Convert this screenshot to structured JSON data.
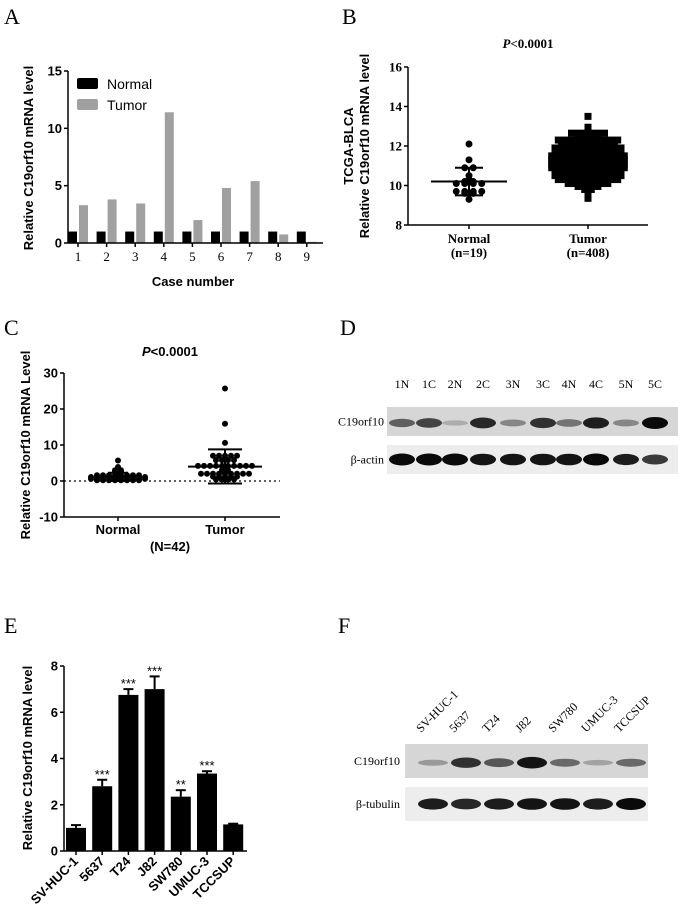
{
  "panels": {
    "a": "A",
    "b": "B",
    "c": "C",
    "d": "D",
    "e": "E",
    "f": "F"
  },
  "chart_data": [
    {
      "id": "A",
      "type": "bar",
      "xlabel": "Case number",
      "ylabel": "Relative C19orf10 mRNA level",
      "ylim": [
        0,
        15
      ],
      "yticks": [
        0,
        5,
        10,
        15
      ],
      "categories": [
        "1",
        "2",
        "3",
        "4",
        "5",
        "6",
        "7",
        "8",
        "9"
      ],
      "legend_position": "top-left",
      "series": [
        {
          "name": "Normal",
          "color": "#000000",
          "values": [
            1,
            1,
            1,
            1,
            1,
            1,
            1,
            1,
            1
          ]
        },
        {
          "name": "Tumor",
          "color": "#a0a0a0",
          "values": [
            3.3,
            3.8,
            3.45,
            11.4,
            2.0,
            4.8,
            5.4,
            0.75,
            0.1
          ]
        }
      ]
    },
    {
      "id": "B",
      "type": "scatter",
      "title": "P<0.0001",
      "title_italic_part": "P",
      "title_rest": "<0.0001",
      "ylabel_lines": [
        "TCGA-BLCA",
        "Relative C19orf10 mRNA level"
      ],
      "ylim": [
        8,
        16
      ],
      "yticks": [
        8,
        10,
        12,
        14,
        16
      ],
      "groups": [
        {
          "name": "Normal",
          "n_label": "(n=19)",
          "marker": "circle",
          "mean": 10.2,
          "sd_low": 9.5,
          "sd_high": 10.9,
          "values": [
            12.1,
            11.25,
            10.9,
            10.9,
            10.5,
            10.15,
            10.1,
            10.1,
            10.05,
            10.1,
            10.2,
            10.25,
            9.7,
            9.7,
            9.7,
            9.65,
            9.6,
            9.6,
            9.3
          ]
        },
        {
          "name": "Tumor",
          "n_label": "(n=408)",
          "marker": "square",
          "mean": 11.2,
          "sd_low": 10.3,
          "sd_high": 12.1,
          "binned_values": [
            [
              13.5,
              1
            ],
            [
              12.95,
              1
            ],
            [
              12.85,
              1
            ],
            [
              12.65,
              6
            ],
            [
              12.5,
              4
            ],
            [
              12.3,
              10
            ],
            [
              12.1,
              9
            ],
            [
              11.9,
              11
            ],
            [
              11.7,
              11
            ],
            [
              11.5,
              12
            ],
            [
              11.3,
              12
            ],
            [
              11.1,
              12
            ],
            [
              10.9,
              12
            ],
            [
              10.7,
              11
            ],
            [
              10.5,
              11
            ],
            [
              10.3,
              10
            ],
            [
              10.1,
              7
            ],
            [
              9.95,
              4
            ],
            [
              9.8,
              2
            ],
            [
              9.75,
              1
            ],
            [
              9.6,
              1
            ],
            [
              9.35,
              1
            ]
          ]
        }
      ]
    },
    {
      "id": "C",
      "type": "scatter",
      "title_italic_part": "P",
      "title_rest": "<0.0001",
      "ylabel": "Relative C19orf10 mRNA Level",
      "xnote": "(N=42)",
      "ylim": [
        -10,
        30
      ],
      "yticks": [
        -10,
        0,
        10,
        20,
        30
      ],
      "reference_line": 0,
      "groups": [
        {
          "name": "Normal",
          "marker": "circle",
          "mean": 1.1,
          "sd_low": 0.0,
          "sd_high": 2.3,
          "binned_values": [
            [
              5.7,
              1
            ],
            [
              3.9,
              1
            ],
            [
              3.0,
              2
            ],
            [
              2.5,
              2
            ],
            [
              1.6,
              8
            ],
            [
              1.1,
              10
            ],
            [
              0.6,
              10
            ],
            [
              0.2,
              8
            ]
          ]
        },
        {
          "name": "Tumor",
          "marker": "circle",
          "mean": 4.0,
          "sd_low": -0.7,
          "sd_high": 8.8,
          "binned_values": [
            [
              25.7,
              1
            ],
            [
              15.9,
              1
            ],
            [
              10.6,
              1
            ],
            [
              7.0,
              5
            ],
            [
              5.8,
              4
            ],
            [
              4.2,
              10
            ],
            [
              3.0,
              2
            ],
            [
              2.0,
              9
            ],
            [
              1.2,
              5
            ],
            [
              0.4,
              4
            ]
          ]
        }
      ]
    },
    {
      "id": "E",
      "type": "bar",
      "ylabel": "Relative C19orf10 mRNA level",
      "ylim": [
        0,
        8
      ],
      "yticks": [
        0,
        2,
        4,
        6,
        8
      ],
      "categories": [
        "SV-HUC-1",
        "5637",
        "T24",
        "J82",
        "SW780",
        "UMUC-3",
        "TCCSUP"
      ],
      "values": [
        1.0,
        2.8,
        6.75,
        7.0,
        2.35,
        3.35,
        1.15
      ],
      "errors": [
        0.12,
        0.28,
        0.25,
        0.55,
        0.28,
        0.1,
        0.03
      ],
      "significance": [
        "",
        "***",
        "***",
        "***",
        "**",
        "***",
        ""
      ],
      "color": "#000000"
    }
  ],
  "blot_d": {
    "lanes": [
      "1N",
      "1C",
      "2N",
      "2C",
      "3N",
      "3C",
      "4N",
      "4C",
      "5N",
      "5C"
    ],
    "rows": [
      {
        "label": "C19orf10",
        "intensity": [
          0.55,
          0.7,
          0.15,
          0.85,
          0.35,
          0.8,
          0.45,
          0.9,
          0.35,
          1.0
        ]
      },
      {
        "label": "β-actin",
        "intensity": [
          1,
          1,
          1,
          0.95,
          0.95,
          0.95,
          0.95,
          1,
          0.9,
          0.75
        ]
      }
    ]
  },
  "blot_f": {
    "lanes": [
      "SV-HUC-1",
      "5637",
      "T24",
      "J82",
      "SW780",
      "UMUC-3",
      "TCCSUP"
    ],
    "rows": [
      {
        "label": "C19orf10",
        "intensity": [
          0.25,
          0.8,
          0.6,
          0.95,
          0.5,
          0.2,
          0.5
        ]
      },
      {
        "label": "β-tubulin",
        "intensity": [
          0.9,
          0.85,
          0.9,
          0.95,
          0.95,
          0.9,
          1
        ]
      }
    ]
  }
}
